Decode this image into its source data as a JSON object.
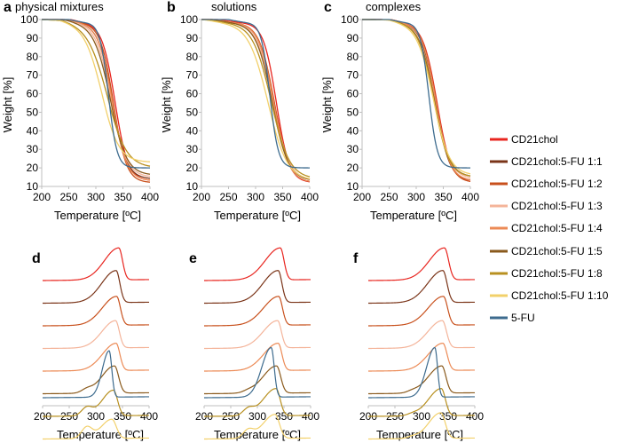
{
  "figure": {
    "series": [
      {
        "name": "CD21chol",
        "color": "#e8251f"
      },
      {
        "name": "CD21chol:5-FU 1:1",
        "color": "#7a3418"
      },
      {
        "name": "CD21chol:5-FU 1:2",
        "color": "#c8501c"
      },
      {
        "name": "CD21chol:5-FU 1:3",
        "color": "#f4b49a"
      },
      {
        "name": "CD21chol:5-FU 1:4",
        "color": "#ec8a55"
      },
      {
        "name": "CD21chol:5-FU 1:5",
        "color": "#8a5a1c"
      },
      {
        "name": "CD21chol:5-FU 1:8",
        "color": "#b89020"
      },
      {
        "name": "CD21chol:5-FU 1:10",
        "color": "#f2d06a"
      },
      {
        "name": "5-FU",
        "color": "#3d6b8e"
      }
    ]
  },
  "chart_data": [
    {
      "panel": "a",
      "title": "physical mixtures",
      "type": "line",
      "xlabel": "Temperature [ºC]",
      "ylabel": "Weight [%]",
      "xlim": [
        200,
        400
      ],
      "ylim": [
        10,
        100
      ],
      "xticks": [
        "200",
        "250",
        "300",
        "350",
        "400"
      ],
      "yticks": [
        "10",
        "20",
        "30",
        "40",
        "50",
        "60",
        "70",
        "80",
        "90",
        "100"
      ],
      "curves": [
        {
          "name": "CD21chol",
          "T50": 335,
          "width": 12,
          "start": 255,
          "final": 13
        },
        {
          "name": "CD21chol:5-FU 1:1",
          "T50": 330,
          "width": 13,
          "start": 250,
          "final": 14
        },
        {
          "name": "CD21chol:5-FU 1:2",
          "T50": 332,
          "width": 12,
          "start": 252,
          "final": 12
        },
        {
          "name": "CD21chol:5-FU 1:3",
          "T50": 328,
          "width": 14,
          "start": 250,
          "final": 15
        },
        {
          "name": "CD21chol:5-FU 1:4",
          "T50": 330,
          "width": 13,
          "start": 250,
          "final": 13
        },
        {
          "name": "CD21chol:5-FU 1:5",
          "T50": 326,
          "width": 15,
          "start": 245,
          "final": 16
        },
        {
          "name": "CD21chol:5-FU 1:8",
          "T50": 320,
          "width": 18,
          "start": 240,
          "final": 20
        },
        {
          "name": "CD21chol:5-FU 1:10",
          "T50": 310,
          "width": 16,
          "start": 235,
          "final": 23
        },
        {
          "name": "5-FU",
          "T50": 323,
          "width": 8,
          "start": 250,
          "final": 20
        }
      ]
    },
    {
      "panel": "b",
      "title": "solutions",
      "type": "line",
      "xlabel": "Temperature [ºC]",
      "ylabel": "Weight [%]",
      "xlim": [
        200,
        400
      ],
      "ylim": [
        10,
        100
      ],
      "xticks": [
        "200",
        "250",
        "300",
        "350",
        "400"
      ],
      "yticks": [
        "10",
        "20",
        "30",
        "40",
        "50",
        "60",
        "70",
        "80",
        "90",
        "100"
      ],
      "curves": [
        {
          "name": "CD21chol",
          "T50": 338,
          "width": 12,
          "start": 230,
          "final": 12
        },
        {
          "name": "CD21chol:5-FU 1:1",
          "T50": 333,
          "width": 14,
          "start": 220,
          "final": 12
        },
        {
          "name": "CD21chol:5-FU 1:2",
          "T50": 334,
          "width": 14,
          "start": 220,
          "final": 13
        },
        {
          "name": "CD21chol:5-FU 1:3",
          "T50": 332,
          "width": 15,
          "start": 220,
          "final": 13
        },
        {
          "name": "CD21chol:5-FU 1:4",
          "T50": 333,
          "width": 14,
          "start": 220,
          "final": 12
        },
        {
          "name": "CD21chol:5-FU 1:5",
          "T50": 330,
          "width": 15,
          "start": 215,
          "final": 13
        },
        {
          "name": "CD21chol:5-FU 1:8",
          "T50": 328,
          "width": 17,
          "start": 210,
          "final": 14
        },
        {
          "name": "CD21chol:5-FU 1:10",
          "T50": 322,
          "width": 18,
          "start": 205,
          "final": 13
        },
        {
          "name": "5-FU",
          "T50": 326,
          "width": 8,
          "start": 250,
          "final": 20
        }
      ]
    },
    {
      "panel": "c",
      "title": "complexes",
      "type": "line",
      "xlabel": "Temperature [ºC]",
      "ylabel": "Weight [%]",
      "xlim": [
        200,
        400
      ],
      "ylim": [
        10,
        100
      ],
      "xticks": [
        "200",
        "250",
        "300",
        "350",
        "400"
      ],
      "yticks": [
        "10",
        "20",
        "30",
        "40",
        "50",
        "60",
        "70",
        "80",
        "90",
        "100"
      ],
      "curves": [
        {
          "name": "CD21chol",
          "T50": 338,
          "width": 13,
          "start": 255,
          "final": 12
        },
        {
          "name": "CD21chol:5-FU 1:1",
          "T50": 335,
          "width": 13,
          "start": 255,
          "final": 13
        },
        {
          "name": "CD21chol:5-FU 1:2",
          "T50": 337,
          "width": 13,
          "start": 255,
          "final": 12
        },
        {
          "name": "CD21chol:5-FU 1:3",
          "T50": 334,
          "width": 14,
          "start": 255,
          "final": 14
        },
        {
          "name": "CD21chol:5-FU 1:4",
          "T50": 336,
          "width": 13,
          "start": 255,
          "final": 13
        },
        {
          "name": "CD21chol:5-FU 1:5",
          "T50": 333,
          "width": 14,
          "start": 250,
          "final": 15
        },
        {
          "name": "CD21chol:5-FU 1:8",
          "T50": 332,
          "width": 14,
          "start": 250,
          "final": 15
        },
        {
          "name": "CD21chol:5-FU 1:10",
          "T50": 331,
          "width": 15,
          "start": 250,
          "final": 16
        },
        {
          "name": "5-FU",
          "T50": 323,
          "width": 8,
          "start": 250,
          "final": 20
        }
      ]
    },
    {
      "panel": "d",
      "type": "line",
      "xlabel": "Temperature [ºC]",
      "xlim": [
        200,
        400
      ],
      "xticks": [
        "200",
        "250",
        "300",
        "350",
        "400"
      ],
      "curves": [
        {
          "name": "CD21chol",
          "peak": 343,
          "wl": 38,
          "wr": 10,
          "amp": 1.0,
          "shoulder": 0
        },
        {
          "name": "CD21chol:5-FU 1:1",
          "peak": 338,
          "wl": 38,
          "wr": 10,
          "amp": 1.0,
          "shoulder": 0
        },
        {
          "name": "CD21chol:5-FU 1:2",
          "peak": 339,
          "wl": 38,
          "wr": 10,
          "amp": 0.9,
          "shoulder": 0
        },
        {
          "name": "CD21chol:5-FU 1:3",
          "peak": 337,
          "wl": 36,
          "wr": 10,
          "amp": 0.85,
          "shoulder": 0
        },
        {
          "name": "CD21chol:5-FU 1:4",
          "peak": 338,
          "wl": 36,
          "wr": 10,
          "amp": 0.85,
          "shoulder": 0
        },
        {
          "name": "CD21chol:5-FU 1:5",
          "peak": 335,
          "wl": 34,
          "wr": 11,
          "amp": 0.85,
          "shoulder": 0.1
        },
        {
          "name": "CD21chol:5-FU 1:8",
          "peak": 333,
          "wl": 30,
          "wr": 11,
          "amp": 0.8,
          "shoulder": 0.25
        },
        {
          "name": "CD21chol:5-FU 1:10",
          "peak": 330,
          "wl": 28,
          "wr": 12,
          "amp": 0.6,
          "shoulder": 0.35
        },
        {
          "name": "5-FU",
          "peak": 325,
          "wl": 18,
          "wr": 7,
          "amp": 1.45,
          "shoulder": 0
        }
      ]
    },
    {
      "panel": "e",
      "type": "line",
      "xlabel": "Temperature [ºC]",
      "xlim": [
        200,
        400
      ],
      "xticks": [
        "200",
        "250",
        "300",
        "350",
        "400"
      ],
      "curves": [
        {
          "name": "CD21chol",
          "peak": 343,
          "wl": 40,
          "wr": 10,
          "amp": 1.0,
          "shoulder": 0
        },
        {
          "name": "CD21chol:5-FU 1:1",
          "peak": 339,
          "wl": 40,
          "wr": 10,
          "amp": 1.0,
          "shoulder": 0
        },
        {
          "name": "CD21chol:5-FU 1:2",
          "peak": 340,
          "wl": 40,
          "wr": 10,
          "amp": 0.9,
          "shoulder": 0
        },
        {
          "name": "CD21chol:5-FU 1:3",
          "peak": 338,
          "wl": 38,
          "wr": 10,
          "amp": 0.85,
          "shoulder": 0
        },
        {
          "name": "CD21chol:5-FU 1:4",
          "peak": 339,
          "wl": 38,
          "wr": 10,
          "amp": 0.85,
          "shoulder": 0
        },
        {
          "name": "CD21chol:5-FU 1:5",
          "peak": 336,
          "wl": 36,
          "wr": 11,
          "amp": 0.85,
          "shoulder": 0.05
        },
        {
          "name": "CD21chol:5-FU 1:8",
          "peak": 335,
          "wl": 34,
          "wr": 11,
          "amp": 0.85,
          "shoulder": 0.2
        },
        {
          "name": "CD21chol:5-FU 1:10",
          "peak": 333,
          "wl": 32,
          "wr": 12,
          "amp": 0.75,
          "shoulder": 0.25
        },
        {
          "name": "5-FU",
          "peak": 326,
          "wl": 25,
          "wr": 8,
          "amp": 1.55,
          "shoulder": 0
        }
      ]
    },
    {
      "panel": "f",
      "type": "line",
      "xlabel": "Temperature [ºC]",
      "xlim": [
        200,
        400
      ],
      "xticks": [
        "200",
        "250",
        "300",
        "350",
        "400"
      ],
      "curves": [
        {
          "name": "CD21chol",
          "peak": 343,
          "wl": 40,
          "wr": 11,
          "amp": 1.0,
          "shoulder": 0
        },
        {
          "name": "CD21chol:5-FU 1:1",
          "peak": 340,
          "wl": 40,
          "wr": 11,
          "amp": 1.0,
          "shoulder": 0
        },
        {
          "name": "CD21chol:5-FU 1:2",
          "peak": 341,
          "wl": 40,
          "wr": 11,
          "amp": 0.9,
          "shoulder": 0
        },
        {
          "name": "CD21chol:5-FU 1:3",
          "peak": 339,
          "wl": 38,
          "wr": 11,
          "amp": 0.85,
          "shoulder": 0
        },
        {
          "name": "CD21chol:5-FU 1:4",
          "peak": 340,
          "wl": 38,
          "wr": 11,
          "amp": 0.85,
          "shoulder": 0
        },
        {
          "name": "CD21chol:5-FU 1:5",
          "peak": 338,
          "wl": 36,
          "wr": 11,
          "amp": 0.85,
          "shoulder": 0.05
        },
        {
          "name": "CD21chol:5-FU 1:8",
          "peak": 337,
          "wl": 34,
          "wr": 11,
          "amp": 0.85,
          "shoulder": 0.05
        },
        {
          "name": "CD21chol:5-FU 1:10",
          "peak": 336,
          "wl": 32,
          "wr": 12,
          "amp": 0.8,
          "shoulder": 0.05
        },
        {
          "name": "5-FU",
          "peak": 325,
          "wl": 22,
          "wr": 7,
          "amp": 1.55,
          "shoulder": 0
        }
      ]
    }
  ]
}
